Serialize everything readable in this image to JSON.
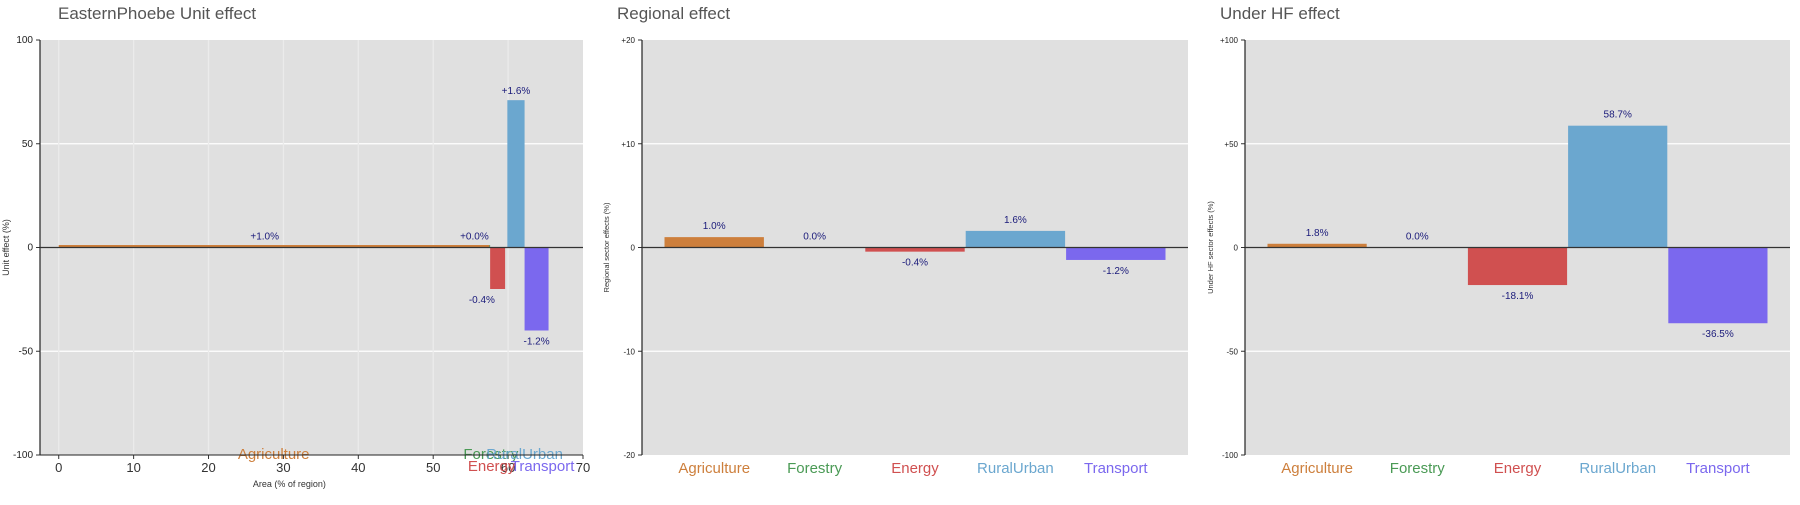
{
  "colors": {
    "Agriculture": "#CD7F3C",
    "Forestry": "#4A9A55",
    "Energy": "#D05050",
    "RuralUrban": "#6BA7CF",
    "Transport": "#7B68EE",
    "panel_bg": "#E0E0E0",
    "label_text": "#1A1A7A",
    "title_text": "#555555"
  },
  "chart_data": [
    {
      "type": "bar",
      "variable_width": true,
      "title": "EasternPhoebe Unit effect",
      "xlabel": "Area (% of region)",
      "ylabel": "Unit effect (%)",
      "xlim": [
        -2.5,
        70
      ],
      "ylim": [
        -100,
        100
      ],
      "xticks": [
        0,
        10,
        20,
        30,
        40,
        50,
        60,
        70
      ],
      "yticks": [
        {
          "value": 100,
          "label": "100"
        },
        {
          "value": 50,
          "label": "50"
        },
        {
          "value": 0,
          "label": "0"
        },
        {
          "value": -50,
          "label": "-50"
        },
        {
          "value": -100,
          "label": "-100"
        }
      ],
      "bars": [
        {
          "category": "Agriculture",
          "x_start": 0,
          "x_end": 57.5,
          "value": 1.0,
          "label": "+1.0%"
        },
        {
          "category": "Forestry",
          "x_start": 57.5,
          "x_end": 57.6,
          "value": 0.0,
          "label": "+0.0%"
        },
        {
          "category": "Energy",
          "x_start": 57.6,
          "x_end": 59.6,
          "value": -20,
          "label": "-0.4%"
        },
        {
          "category": "RuralUrban",
          "x_start": 59.9,
          "x_end": 62.2,
          "value": 71,
          "label": "+1.6%"
        },
        {
          "category": "Transport",
          "x_start": 62.2,
          "x_end": 65.4,
          "value": -40,
          "label": "-1.2%"
        }
      ],
      "category_labels": [
        "Agriculture",
        "Forestry",
        "Energy",
        "RuralUrban",
        "Transport"
      ]
    },
    {
      "type": "bar",
      "title": "Regional effect",
      "xlabel": "",
      "ylabel": "Regional sector effects (%)",
      "ylim": [
        -20,
        20
      ],
      "yticks": [
        {
          "value": 20,
          "label": "+20"
        },
        {
          "value": 10,
          "label": "+10"
        },
        {
          "value": 0,
          "label": "0"
        },
        {
          "value": -10,
          "label": "-10"
        },
        {
          "value": -20,
          "label": "-20"
        }
      ],
      "categories": [
        "Agriculture",
        "Forestry",
        "Energy",
        "RuralUrban",
        "Transport"
      ],
      "values": [
        1.0,
        0.0,
        -0.4,
        1.6,
        -1.2
      ],
      "data_labels": [
        "1.0%",
        "0.0%",
        "-0.4%",
        "1.6%",
        "-1.2%"
      ]
    },
    {
      "type": "bar",
      "title": "Under HF effect",
      "xlabel": "",
      "ylabel": "Under HF sector effects (%)",
      "ylim": [
        -100,
        100
      ],
      "yticks": [
        {
          "value": 100,
          "label": "+100"
        },
        {
          "value": 50,
          "label": "+50"
        },
        {
          "value": 0,
          "label": "0"
        },
        {
          "value": -50,
          "label": "-50"
        },
        {
          "value": -100,
          "label": "-100"
        }
      ],
      "categories": [
        "Agriculture",
        "Forestry",
        "Energy",
        "RuralUrban",
        "Transport"
      ],
      "values": [
        1.8,
        0.0,
        -18.1,
        58.7,
        -36.5
      ],
      "data_labels": [
        "1.8%",
        "0.0%",
        "-18.1%",
        "58.7%",
        "-36.5%"
      ]
    }
  ]
}
